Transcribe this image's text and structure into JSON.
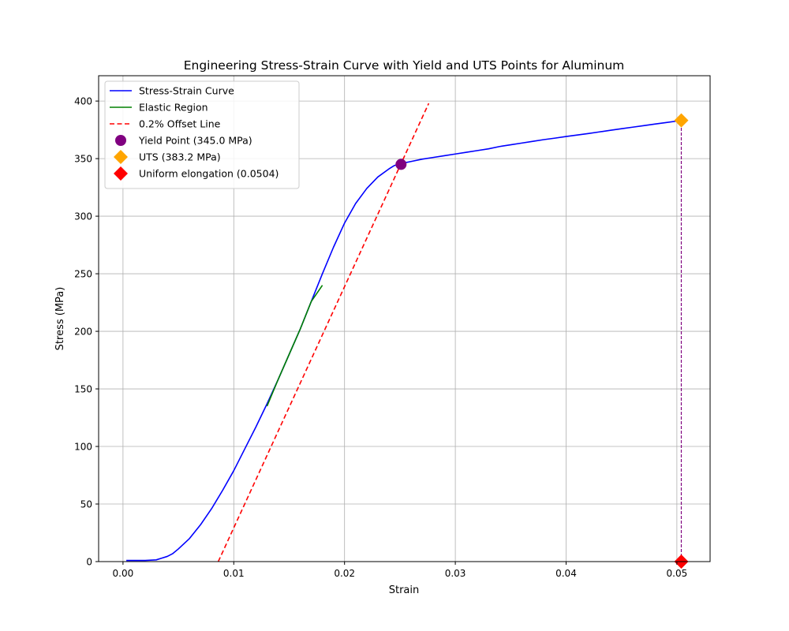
{
  "chart_data": {
    "type": "line",
    "title": "Engineering Stress-Strain Curve with Yield and UTS Points for Aluminum",
    "xlabel": "Strain",
    "ylabel": "Stress (MPa)",
    "xlim": [
      -0.0022,
      0.053
    ],
    "ylim": [
      0,
      422
    ],
    "xticks": [
      0.0,
      0.01,
      0.02,
      0.03,
      0.04,
      0.05
    ],
    "xtick_labels": [
      "0.00",
      "0.01",
      "0.02",
      "0.03",
      "0.04",
      "0.05"
    ],
    "yticks": [
      0,
      50,
      100,
      150,
      200,
      250,
      300,
      350,
      400
    ],
    "ytick_labels": [
      "0",
      "50",
      "100",
      "150",
      "200",
      "250",
      "300",
      "350",
      "400"
    ],
    "grid": true,
    "legend_position": "top-left",
    "series": [
      {
        "name": "Stress-Strain Curve",
        "kind": "line",
        "color": "#0000ff",
        "style": "solid",
        "x": [
          0.0003,
          0.001,
          0.002,
          0.003,
          0.0035,
          0.004,
          0.0045,
          0.005,
          0.006,
          0.007,
          0.008,
          0.009,
          0.01,
          0.011,
          0.012,
          0.013,
          0.014,
          0.015,
          0.016,
          0.017,
          0.018,
          0.019,
          0.02,
          0.021,
          0.022,
          0.023,
          0.024,
          0.0245,
          0.025,
          0.0255,
          0.026,
          0.027,
          0.028,
          0.029,
          0.03,
          0.031,
          0.032,
          0.033,
          0.034,
          0.035,
          0.036,
          0.037,
          0.038,
          0.039,
          0.04,
          0.041,
          0.042,
          0.043,
          0.044,
          0.045,
          0.046,
          0.047,
          0.048,
          0.049,
          0.05,
          0.0504
        ],
        "y": [
          1,
          1,
          1,
          1.5,
          3,
          4.5,
          7,
          11,
          20,
          32,
          46,
          62,
          79,
          98,
          117,
          137,
          158,
          180,
          202,
          226,
          250,
          273,
          294,
          311,
          324,
          334,
          341,
          344,
          345.5,
          346.5,
          347.5,
          349.5,
          351,
          352.5,
          354,
          355.5,
          357,
          358.5,
          360.5,
          362,
          363.5,
          365,
          366.5,
          367.8,
          369.2,
          370.5,
          371.8,
          373.2,
          374.6,
          376,
          377.3,
          378.6,
          380,
          381.3,
          382.6,
          383.2
        ]
      },
      {
        "name": "Elastic Region",
        "kind": "line",
        "color": "#008000",
        "style": "solid",
        "x": [
          0.013,
          0.014,
          0.015,
          0.016,
          0.017,
          0.018
        ],
        "y": [
          135,
          158,
          180,
          202,
          226,
          240
        ]
      },
      {
        "name": "0.2% Offset Line",
        "kind": "line",
        "color": "#ff0000",
        "style": "dashed",
        "x": [
          0.0086,
          0.0276
        ],
        "y": [
          0,
          398
        ]
      },
      {
        "name": "Yield Point (345.0 MPa)",
        "kind": "marker",
        "marker": "circle",
        "color": "#800080",
        "x": [
          0.0251
        ],
        "y": [
          345.0
        ]
      },
      {
        "name": "UTS (383.2 MPa)",
        "kind": "marker",
        "marker": "diamond",
        "color": "#ffa500",
        "x": [
          0.0504
        ],
        "y": [
          383.2
        ]
      },
      {
        "name": "Uniform elongation (0.0504)",
        "kind": "marker",
        "marker": "diamond",
        "color": "#ff0000",
        "x": [
          0.0504
        ],
        "y": [
          0
        ]
      }
    ],
    "reference_lines": [
      {
        "x": 0.0504,
        "y_from": 0,
        "y_to": 383.2,
        "color": "#800080",
        "style": "dashed"
      }
    ]
  }
}
